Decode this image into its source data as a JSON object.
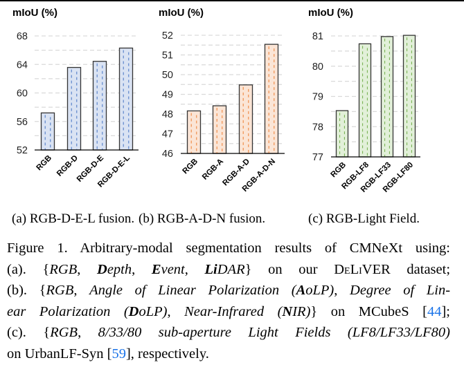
{
  "chart_data": [
    {
      "type": "bar",
      "ylabel": "mIoU (%)",
      "categories": [
        "RGB",
        "RGB-D",
        "RGB-D-E",
        "RGB-D-E-L"
      ],
      "values": [
        57.2,
        63.58,
        64.44,
        66.3
      ],
      "ylim": [
        52,
        68
      ],
      "yticks": [
        52,
        56,
        60,
        64,
        68
      ],
      "grid": true,
      "colors": {
        "fill": "#dae3f3",
        "pattern": "#4472c4"
      }
    },
    {
      "type": "bar",
      "ylabel": "mIoU (%)",
      "categories": [
        "RGB",
        "RGB-A",
        "RGB-A-D",
        "RGB-A-D-N"
      ],
      "values": [
        48.16,
        48.42,
        49.48,
        51.54
      ],
      "ylim": [
        46,
        52
      ],
      "yticks": [
        46,
        47,
        48,
        49,
        50,
        51,
        52
      ],
      "grid": true,
      "colors": {
        "fill": "#fbe5d6",
        "pattern": "#ed7d31"
      }
    },
    {
      "type": "bar",
      "ylabel": "mIoU (%)",
      "categories": [
        "RGB",
        "RGB-LF8",
        "RGB-LF33",
        "RGB-LF80"
      ],
      "values": [
        78.53,
        80.74,
        80.98,
        81.02
      ],
      "ylim": [
        77,
        81
      ],
      "yticks": [
        77,
        78,
        79,
        80,
        81
      ],
      "grid": true,
      "colors": {
        "fill": "#e2f0d9",
        "pattern": "#70ad47"
      }
    }
  ],
  "subcaptions": [
    "(a) RGB-D-E-L fusion.",
    "(b) RGB-A-D-N fusion.",
    "(c) RGB-Light Field."
  ],
  "caption": [
    [
      {
        "t": "Figure 1. Arbitrary-modal segmentation results of CMNeXt using:"
      }
    ],
    [
      {
        "t": "(a). {"
      },
      {
        "t": "RGB",
        "s": "i"
      },
      {
        "t": ", "
      },
      {
        "t": "D",
        "s": "b i"
      },
      {
        "t": "epth",
        "s": "i"
      },
      {
        "t": ", "
      },
      {
        "t": "E",
        "s": "b i"
      },
      {
        "t": "vent",
        "s": "i"
      },
      {
        "t": ", "
      },
      {
        "t": "Li",
        "s": "b i"
      },
      {
        "t": "DAR",
        "s": "i"
      },
      {
        "t": "} on our "
      },
      {
        "t": "DeLiVER",
        "s": "sc"
      },
      {
        "t": " dataset;"
      }
    ],
    [
      {
        "t": "(b). {"
      },
      {
        "t": "RGB",
        "s": "i"
      },
      {
        "t": ", "
      },
      {
        "t": "Angle of Linear Polarization (",
        "s": "i"
      },
      {
        "t": "A",
        "s": "b i"
      },
      {
        "t": "oLP)",
        "s": "i"
      },
      {
        "t": ", "
      },
      {
        "t": "Degree of Lin-",
        "s": "i"
      }
    ],
    [
      {
        "t": "ear Polarization (",
        "s": "i"
      },
      {
        "t": "D",
        "s": "b i"
      },
      {
        "t": "oLP)",
        "s": "i"
      },
      {
        "t": ", "
      },
      {
        "t": "Near-Infrared (",
        "s": "i"
      },
      {
        "t": "N",
        "s": "b i"
      },
      {
        "t": "IR)",
        "s": "i"
      },
      {
        "t": "} on MCubeS ["
      },
      {
        "t": "44",
        "s": "lnk"
      },
      {
        "t": "];"
      }
    ],
    [
      {
        "t": "(c). {"
      },
      {
        "t": "RGB",
        "s": "i"
      },
      {
        "t": ", "
      },
      {
        "t": "8/33/80 sub-aperture Light Fields (LF8/LF33/LF80)",
        "s": "i"
      }
    ],
    [
      {
        "t": "on UrbanLF-Syn ["
      },
      {
        "t": "59",
        "s": "lnk"
      },
      {
        "t": "], respectively."
      }
    ]
  ]
}
